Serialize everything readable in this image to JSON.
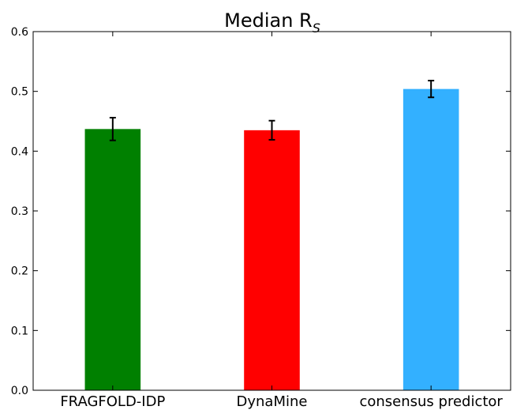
{
  "chart_data": {
    "type": "bar",
    "title": "Median R",
    "title_subscript": "S",
    "xlabel": "",
    "ylabel": "",
    "categories": [
      "FRAGFOLD-IDP",
      "DynaMine",
      "consensus predictor"
    ],
    "values": [
      0.437,
      0.435,
      0.504
    ],
    "errors": [
      0.019,
      0.016,
      0.014
    ],
    "colors": [
      "#008000",
      "#ff0000",
      "#33b0ff"
    ],
    "ylim": [
      0,
      0.6
    ],
    "yticks": [
      "0.0",
      "0.1",
      "0.2",
      "0.3",
      "0.4",
      "0.5",
      "0.6"
    ],
    "grid": false
  }
}
